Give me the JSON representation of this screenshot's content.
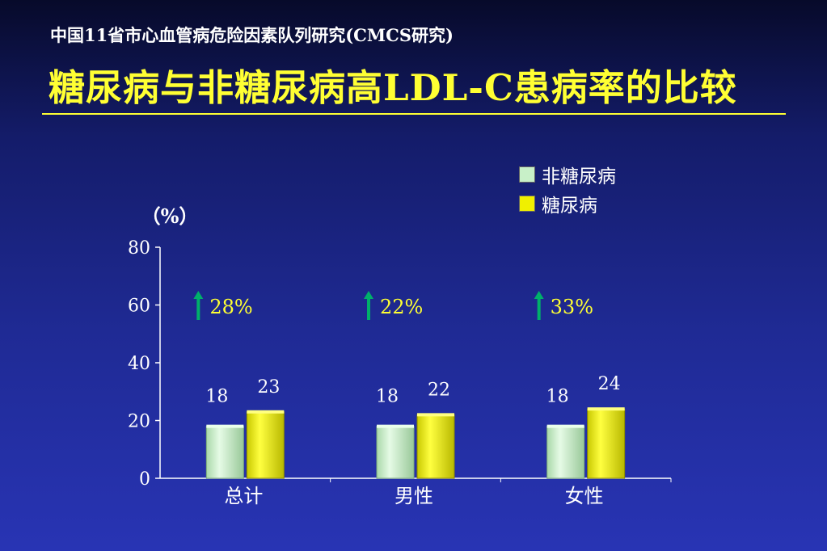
{
  "header": {
    "subtitle": "中国11省市心血管病危险因素队列研究(CMCS研究)",
    "title": "糖尿病与非糖尿病高LDL-C患病率的比较"
  },
  "colors": {
    "series_1": "#c8f0c8",
    "series_2": "#f0f000",
    "arrow": "#00b06a",
    "increase_text": "#ffff33"
  },
  "chart_data": {
    "type": "bar",
    "title": "",
    "ylabel": "（%）",
    "xlabel": "",
    "ylim": [
      0,
      80
    ],
    "yticks": [
      0,
      20,
      40,
      60,
      80
    ],
    "categories": [
      "总计",
      "男性",
      "女性"
    ],
    "series": [
      {
        "name": "非糖尿病",
        "values": [
          18,
          18,
          18
        ]
      },
      {
        "name": "糖尿病",
        "values": [
          23,
          22,
          24
        ]
      }
    ],
    "increases": [
      "28%",
      "22%",
      "33%"
    ],
    "legend_position": "top-right",
    "grid": false
  }
}
